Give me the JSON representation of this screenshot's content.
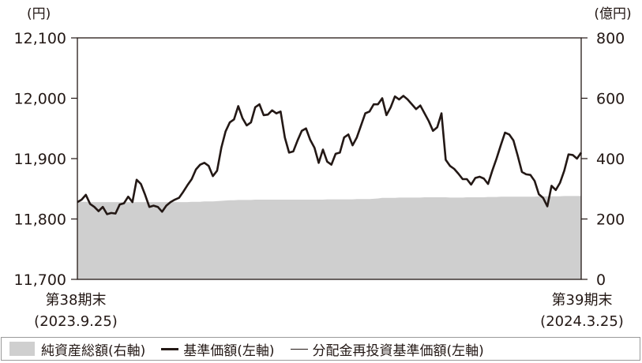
{
  "chart_data": {
    "type": "line",
    "left_axis": {
      "unit": "(円)",
      "ticks": [
        "12,100",
        "12,000",
        "11,900",
        "11,800",
        "11,700"
      ],
      "min": 11700,
      "max": 12100
    },
    "right_axis": {
      "unit": "(億円)",
      "ticks": [
        "800",
        "600",
        "400",
        "200",
        "0"
      ],
      "min": 0,
      "max": 800
    },
    "x_labels": [
      {
        "line1": "第38期末",
        "line2": "(2023.9.25)"
      },
      {
        "line1": "第39期末",
        "line2": "(2024.3.25)"
      }
    ],
    "series": [
      {
        "name": "基準価額",
        "axis": "left",
        "color": "#231815",
        "values": [
          11828,
          11832,
          11840,
          11825,
          11820,
          11813,
          11820,
          11808,
          11810,
          11809,
          11824,
          11826,
          11837,
          11828,
          11865,
          11858,
          11840,
          11820,
          11822,
          11820,
          11812,
          11822,
          11828,
          11832,
          11835,
          11845,
          11856,
          11866,
          11882,
          11890,
          11893,
          11888,
          11871,
          11880,
          11918,
          11945,
          11960,
          11965,
          11987,
          11967,
          11955,
          11960,
          11985,
          11990,
          11972,
          11973,
          11980,
          11975,
          11978,
          11935,
          11910,
          11912,
          11930,
          11946,
          11950,
          11931,
          11918,
          11893,
          11915,
          11895,
          11890,
          11908,
          11910,
          11935,
          11940,
          11922,
          11935,
          11955,
          11975,
          11978,
          11990,
          11990,
          12000,
          11972,
          11985,
          12003,
          11998,
          12004,
          11998,
          11990,
          11982,
          11988,
          11975,
          11962,
          11946,
          11952,
          11975,
          11898,
          11888,
          11883,
          11875,
          11866,
          11866,
          11857,
          11868,
          11870,
          11867,
          11858,
          11880,
          11900,
          11922,
          11943,
          11940,
          11930,
          11905,
          11878,
          11874,
          11873,
          11863,
          11841,
          11835,
          11821,
          11855,
          11848,
          11860,
          11880,
          11907,
          11906,
          11900,
          11910
        ]
      },
      {
        "name": "純資産総額",
        "axis": "right",
        "color": "#cfcfcf",
        "values": [
          258,
          257,
          257,
          256,
          256,
          256,
          256,
          256,
          256,
          256,
          256,
          256,
          256,
          256,
          256,
          256,
          256,
          256,
          256,
          256,
          256,
          256,
          256,
          256,
          256,
          256,
          256,
          257,
          257,
          257,
          258,
          258,
          258,
          259,
          260,
          261,
          262,
          262,
          263,
          263,
          263,
          263,
          264,
          264,
          264,
          264,
          264,
          264,
          264,
          264,
          264,
          264,
          264,
          264,
          264,
          264,
          264,
          264,
          264,
          265,
          265,
          265,
          265,
          265,
          265,
          265,
          266,
          266,
          266,
          266,
          267,
          268,
          270,
          270,
          270,
          270,
          271,
          271,
          271,
          271,
          271,
          271,
          272,
          272,
          272,
          272,
          272,
          272,
          271,
          271,
          271,
          271,
          272,
          272,
          272,
          272,
          272,
          273,
          273,
          273,
          274,
          274,
          274,
          274,
          274,
          274,
          274,
          274,
          274,
          275,
          275,
          275,
          275,
          275,
          275,
          276,
          276,
          276,
          276,
          276
        ]
      }
    ]
  },
  "legend": {
    "net_assets": "純資産総額(右軸)",
    "nav": "基準価額(左軸)",
    "reinvested": "分配金再投資基準価額(左軸)"
  }
}
